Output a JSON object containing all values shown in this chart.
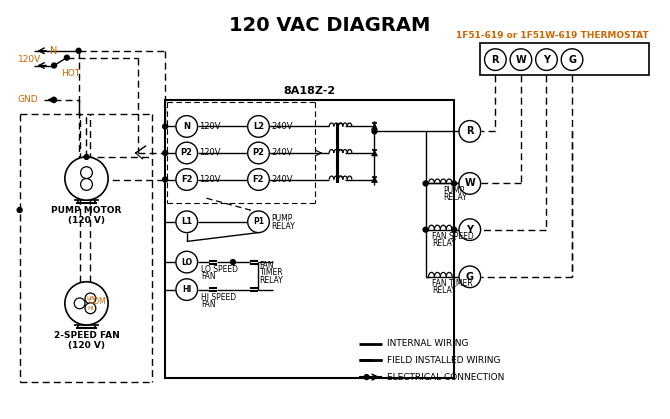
{
  "title": "120 VAC DIAGRAM",
  "bg_color": "#ffffff",
  "line_color": "#000000",
  "orange_color": "#cc6600",
  "thermostat_label": "1F51-619 or 1F51W-619 THERMOSTAT",
  "controller_label": "8A18Z-2",
  "fig_w": 6.7,
  "fig_h": 4.19,
  "dpi": 100
}
